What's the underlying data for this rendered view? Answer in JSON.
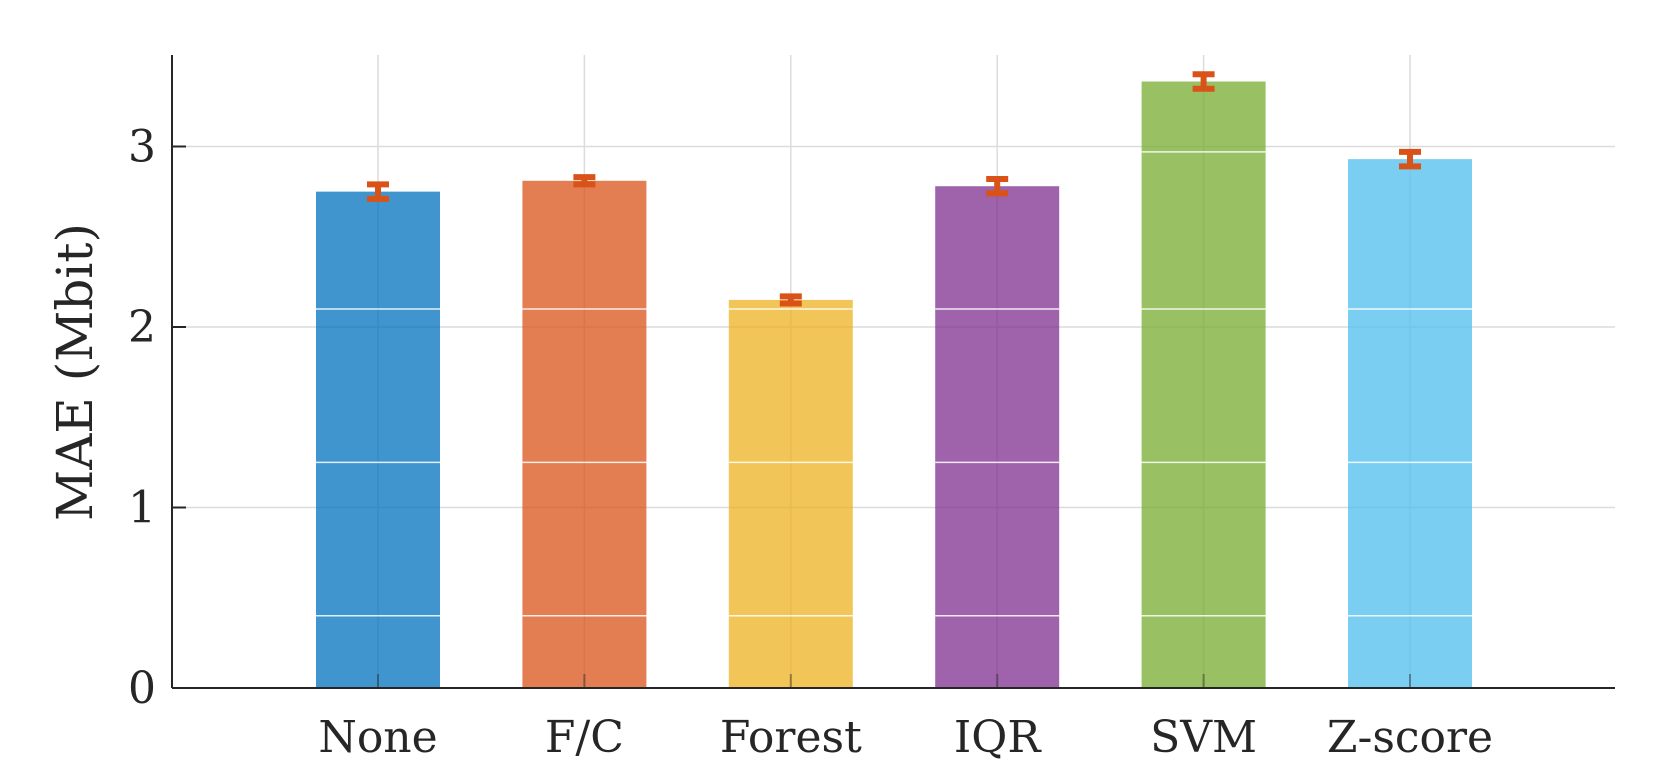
{
  "chart_data": {
    "type": "bar",
    "title": "",
    "xlabel": "",
    "ylabel": "MAE (Mbit)",
    "categories": [
      "None",
      "F/C",
      "Forest",
      "IQR",
      "SVM",
      "Z-score"
    ],
    "values": [
      2.75,
      2.81,
      2.15,
      2.78,
      3.36,
      2.93
    ],
    "error": [
      0.04,
      0.02,
      0.02,
      0.04,
      0.04,
      0.04
    ],
    "ylim": [
      0,
      3.5
    ],
    "yticks": [
      0,
      1,
      2,
      3
    ],
    "grid": true,
    "colors": [
      "#0072BD",
      "#D95319",
      "#EDB120",
      "#7E2F8E",
      "#77AC30",
      "#4DBEEE"
    ],
    "error_color": "#D95319",
    "bar_opacity": 0.75
  }
}
